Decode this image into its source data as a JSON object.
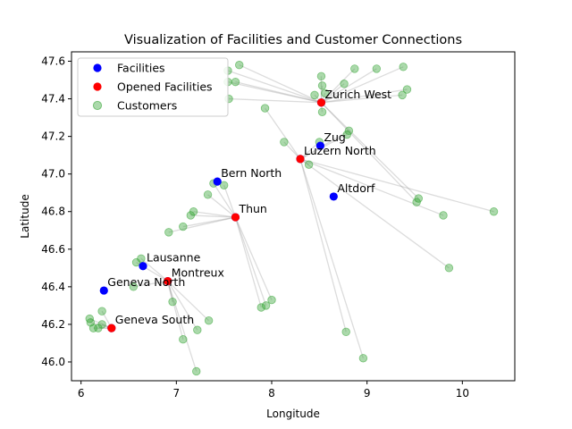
{
  "chart_data": {
    "type": "scatter",
    "title": "Visualization of Facilities and Customer Connections",
    "xlabel": "Longitude",
    "ylabel": "Latitude",
    "xlim": [
      5.9,
      10.55
    ],
    "ylim": [
      45.9,
      47.65
    ],
    "xticks": [
      "6",
      "7",
      "8",
      "9",
      "10"
    ],
    "yticks": [
      "46.0",
      "46.2",
      "46.4",
      "46.6",
      "46.8",
      "47.0",
      "47.2",
      "47.4",
      "47.6"
    ],
    "grid": false,
    "legend_position": "top-left",
    "legend": [
      {
        "label": "Facilities",
        "color": "#0000ff"
      },
      {
        "label": "Opened Facilities",
        "color": "#ff0000"
      },
      {
        "label": "Customers",
        "color": "#2ca02c"
      }
    ],
    "facilities": [
      {
        "name": "Zurich West",
        "x": 8.52,
        "y": 47.38
      },
      {
        "name": "Zug",
        "x": 8.51,
        "y": 47.15
      },
      {
        "name": "Luzern North",
        "x": 8.3,
        "y": 47.08
      },
      {
        "name": "Bern North",
        "x": 7.43,
        "y": 46.96
      },
      {
        "name": "Altdorf",
        "x": 8.65,
        "y": 46.88
      },
      {
        "name": "Thun",
        "x": 7.62,
        "y": 46.77
      },
      {
        "name": "Lausanne",
        "x": 6.65,
        "y": 46.51
      },
      {
        "name": "Montreux",
        "x": 6.91,
        "y": 46.43
      },
      {
        "name": "Geneva North",
        "x": 6.24,
        "y": 46.38
      },
      {
        "name": "Geneva South",
        "x": 6.32,
        "y": 46.18
      }
    ],
    "opened_facilities": [
      {
        "name": "Zurich West",
        "x": 8.52,
        "y": 47.38
      },
      {
        "name": "Luzern North",
        "x": 8.3,
        "y": 47.08
      },
      {
        "name": "Thun",
        "x": 7.62,
        "y": 46.77
      },
      {
        "name": "Montreux",
        "x": 6.91,
        "y": 46.43
      },
      {
        "name": "Geneva South",
        "x": 6.32,
        "y": 46.18
      }
    ],
    "customers": [
      {
        "x": 7.66,
        "y": 47.58,
        "facility": "Zurich West"
      },
      {
        "x": 7.54,
        "y": 47.55,
        "facility": "Zurich West"
      },
      {
        "x": 7.62,
        "y": 47.49,
        "facility": "Zurich West"
      },
      {
        "x": 7.54,
        "y": 47.49,
        "facility": "Zurich West"
      },
      {
        "x": 7.55,
        "y": 47.4,
        "facility": "Zurich West"
      },
      {
        "x": 8.45,
        "y": 47.42,
        "facility": "Zurich West"
      },
      {
        "x": 8.52,
        "y": 47.52,
        "facility": "Zurich West"
      },
      {
        "x": 8.53,
        "y": 47.47,
        "facility": "Zurich West"
      },
      {
        "x": 8.56,
        "y": 47.43,
        "facility": "Zurich West"
      },
      {
        "x": 8.76,
        "y": 47.48,
        "facility": "Zurich West"
      },
      {
        "x": 8.87,
        "y": 47.56,
        "facility": "Zurich West"
      },
      {
        "x": 9.1,
        "y": 47.56,
        "facility": "Zurich West"
      },
      {
        "x": 9.38,
        "y": 47.57,
        "facility": "Zurich West"
      },
      {
        "x": 9.42,
        "y": 47.45,
        "facility": "Zurich West"
      },
      {
        "x": 9.37,
        "y": 47.42,
        "facility": "Zurich West"
      },
      {
        "x": 8.53,
        "y": 47.33,
        "facility": "Zurich West"
      },
      {
        "x": 9.54,
        "y": 46.87,
        "facility": "Zurich West"
      },
      {
        "x": 9.52,
        "y": 46.85,
        "facility": "Zurich West"
      },
      {
        "x": 7.93,
        "y": 47.35,
        "facility": "Luzern North"
      },
      {
        "x": 8.13,
        "y": 47.17,
        "facility": "Luzern North"
      },
      {
        "x": 8.5,
        "y": 47.17,
        "facility": "Luzern North"
      },
      {
        "x": 8.81,
        "y": 47.23,
        "facility": "Luzern North"
      },
      {
        "x": 8.79,
        "y": 47.21,
        "facility": "Luzern North"
      },
      {
        "x": 8.39,
        "y": 47.05,
        "facility": "Luzern North"
      },
      {
        "x": 9.8,
        "y": 46.78,
        "facility": "Luzern North"
      },
      {
        "x": 10.33,
        "y": 46.8,
        "facility": "Luzern North"
      },
      {
        "x": 9.86,
        "y": 46.5,
        "facility": "Luzern North"
      },
      {
        "x": 8.78,
        "y": 46.16,
        "facility": "Luzern North"
      },
      {
        "x": 8.96,
        "y": 46.02,
        "facility": "Luzern North"
      },
      {
        "x": 7.39,
        "y": 46.95,
        "facility": "Thun"
      },
      {
        "x": 7.5,
        "y": 46.94,
        "facility": "Thun"
      },
      {
        "x": 7.33,
        "y": 46.89,
        "facility": "Thun"
      },
      {
        "x": 7.18,
        "y": 46.8,
        "facility": "Thun"
      },
      {
        "x": 7.15,
        "y": 46.78,
        "facility": "Thun"
      },
      {
        "x": 7.07,
        "y": 46.72,
        "facility": "Thun"
      },
      {
        "x": 6.92,
        "y": 46.69,
        "facility": "Thun"
      },
      {
        "x": 8.0,
        "y": 46.33,
        "facility": "Thun"
      },
      {
        "x": 7.94,
        "y": 46.3,
        "facility": "Thun"
      },
      {
        "x": 7.89,
        "y": 46.29,
        "facility": "Thun"
      },
      {
        "x": 6.63,
        "y": 46.55,
        "facility": "Montreux"
      },
      {
        "x": 6.58,
        "y": 46.53,
        "facility": "Montreux"
      },
      {
        "x": 6.55,
        "y": 46.4,
        "facility": "Montreux"
      },
      {
        "x": 6.96,
        "y": 46.32,
        "facility": "Montreux"
      },
      {
        "x": 7.34,
        "y": 46.22,
        "facility": "Montreux"
      },
      {
        "x": 7.22,
        "y": 46.17,
        "facility": "Montreux"
      },
      {
        "x": 7.07,
        "y": 46.12,
        "facility": "Montreux"
      },
      {
        "x": 7.21,
        "y": 45.95,
        "facility": "Montreux"
      },
      {
        "x": 6.22,
        "y": 46.27,
        "facility": "Geneva South"
      },
      {
        "x": 6.09,
        "y": 46.23,
        "facility": "Geneva South"
      },
      {
        "x": 6.1,
        "y": 46.21,
        "facility": "Geneva South"
      },
      {
        "x": 6.22,
        "y": 46.2,
        "facility": "Geneva South"
      },
      {
        "x": 6.13,
        "y": 46.18,
        "facility": "Geneva South"
      },
      {
        "x": 6.18,
        "y": 46.18,
        "facility": "Geneva South"
      }
    ]
  }
}
